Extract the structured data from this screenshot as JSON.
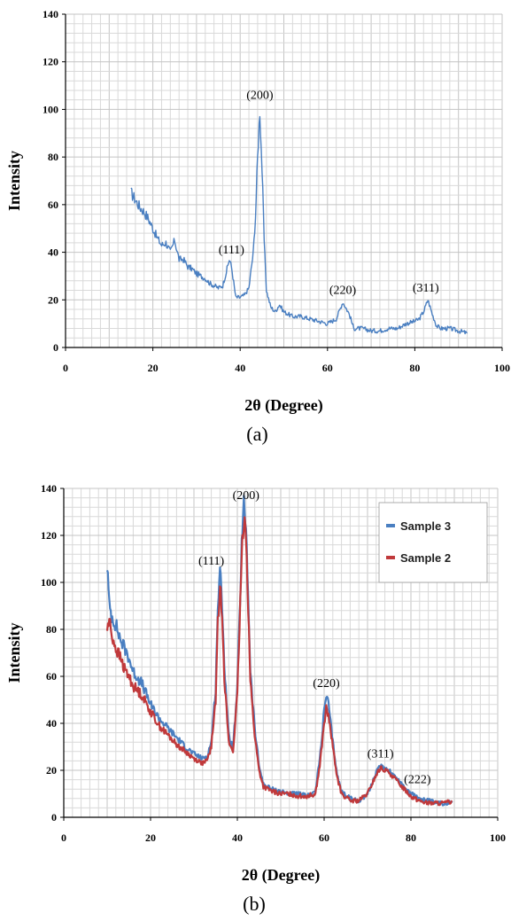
{
  "colors": {
    "sample3": "#4a7fc1",
    "sample2": "#c0393b",
    "grid_minor": "#d9d9d9",
    "grid_major": "#c4c4c4"
  },
  "chart_data": [
    {
      "type": "line",
      "caption": "(a)",
      "xlabel": "2θ (Degree)",
      "ylabel": "Intensity",
      "xlim": [
        0,
        100
      ],
      "ylim": [
        0,
        140
      ],
      "xticks": [
        0,
        20,
        40,
        60,
        80,
        100
      ],
      "yticks": [
        0,
        20,
        40,
        60,
        80,
        100,
        120,
        140
      ],
      "grid": true,
      "legend": null,
      "annotations": [
        {
          "text": "(111)",
          "x": 38,
          "y": 38
        },
        {
          "text": "(200)",
          "x": 44.5,
          "y": 103
        },
        {
          "text": "(220)",
          "x": 63.5,
          "y": 21
        },
        {
          "text": "(311)",
          "x": 82.5,
          "y": 22
        }
      ],
      "series": [
        {
          "color": "#4a7fc1",
          "x": [
            15,
            16,
            17,
            18,
            19,
            20,
            21,
            22,
            23,
            24,
            25,
            26,
            27,
            28,
            29,
            30,
            31,
            32,
            33,
            34,
            35,
            36,
            37,
            37.5,
            38,
            39,
            40,
            41,
            42,
            43,
            43.5,
            44,
            44.5,
            45,
            45.5,
            46,
            47,
            48,
            49,
            50,
            52,
            54,
            56,
            58,
            60,
            62,
            63.5,
            65,
            66,
            68,
            70,
            72,
            74,
            76,
            78,
            80,
            81,
            82,
            83,
            84,
            85,
            86,
            88,
            90,
            92
          ],
          "y": [
            65,
            62,
            59,
            57,
            54,
            50,
            46,
            43,
            44,
            40,
            45,
            37,
            37,
            34,
            33,
            31,
            30,
            29,
            27,
            26,
            25,
            26,
            33,
            37,
            34,
            21,
            21,
            22,
            25,
            40,
            55,
            80,
            100,
            75,
            45,
            24,
            17,
            15,
            18,
            15,
            13,
            13,
            12,
            11,
            10,
            12,
            19,
            14,
            8,
            8,
            7,
            7,
            8,
            8,
            10,
            11,
            12,
            15,
            20,
            14,
            9,
            8,
            8,
            7,
            6
          ]
        }
      ]
    },
    {
      "type": "line",
      "caption": "(b)",
      "xlabel": "2θ (Degree)",
      "ylabel": "Intensity",
      "xlim": [
        0,
        100
      ],
      "ylim": [
        0,
        140
      ],
      "xticks": [
        0,
        20,
        40,
        60,
        80,
        100
      ],
      "yticks": [
        0,
        20,
        40,
        60,
        80,
        100,
        120,
        140
      ],
      "grid": true,
      "legend": "top-right",
      "annotations": [
        {
          "text": "(111)",
          "x": 34,
          "y": 106
        },
        {
          "text": "(200)",
          "x": 42,
          "y": 134
        },
        {
          "text": "(220)",
          "x": 60.5,
          "y": 54
        },
        {
          "text": "(311)",
          "x": 73,
          "y": 24
        },
        {
          "text": "(222)",
          "x": 81.5,
          "y": 13
        }
      ],
      "series": [
        {
          "name": "Sample 3",
          "color": "#4a7fc1",
          "x": [
            10,
            10.5,
            11,
            12,
            13,
            14,
            15,
            16,
            18,
            20,
            22,
            24,
            26,
            28,
            30,
            32,
            33,
            34,
            35,
            35.5,
            36,
            36.5,
            37,
            38,
            39,
            40,
            41,
            41.5,
            42,
            42.5,
            43,
            44,
            45,
            46,
            48,
            50,
            52,
            54,
            56,
            58,
            59,
            60,
            60.5,
            61,
            62,
            63,
            64,
            66,
            68,
            70,
            71,
            72,
            73,
            74,
            75,
            76,
            78,
            80,
            82,
            84,
            86,
            88,
            89.5
          ],
          "y": [
            108,
            90,
            86,
            82,
            76,
            72,
            68,
            62,
            57,
            48,
            42,
            38,
            34,
            30,
            27,
            25,
            26,
            32,
            55,
            90,
            104,
            92,
            65,
            35,
            29,
            55,
            115,
            132,
            125,
            95,
            62,
            38,
            22,
            14,
            12,
            11,
            10,
            10,
            9,
            11,
            25,
            45,
            52,
            48,
            32,
            18,
            11,
            8,
            7,
            10,
            14,
            19,
            22,
            21,
            20,
            18,
            14,
            10,
            8,
            7,
            6,
            6,
            7
          ]
        },
        {
          "name": "Sample 2",
          "color": "#c0393b",
          "x": [
            10,
            10.5,
            11,
            12,
            13,
            14,
            15,
            16,
            18,
            20,
            22,
            24,
            26,
            28,
            30,
            32,
            33,
            34,
            35,
            35.5,
            36,
            36.5,
            37,
            38,
            39,
            40,
            41,
            41.5,
            42,
            42.5,
            43,
            44,
            45,
            46,
            48,
            50,
            52,
            54,
            56,
            58,
            59,
            60,
            60.5,
            61,
            62,
            63,
            64,
            66,
            68,
            70,
            71,
            72,
            73,
            74,
            75,
            76,
            78,
            80,
            82,
            84,
            86,
            88,
            89.5
          ],
          "y": [
            80,
            84,
            78,
            72,
            68,
            63,
            60,
            56,
            52,
            45,
            39,
            35,
            31,
            28,
            25,
            23,
            24,
            30,
            50,
            82,
            98,
            88,
            60,
            32,
            28,
            52,
            110,
            128,
            122,
            90,
            58,
            35,
            20,
            13,
            11,
            10,
            10,
            9,
            9,
            10,
            22,
            40,
            46,
            43,
            30,
            17,
            10,
            7,
            7,
            10,
            14,
            18,
            21,
            20,
            19,
            17,
            13,
            9,
            7,
            6,
            6,
            6,
            7
          ]
        }
      ]
    }
  ]
}
